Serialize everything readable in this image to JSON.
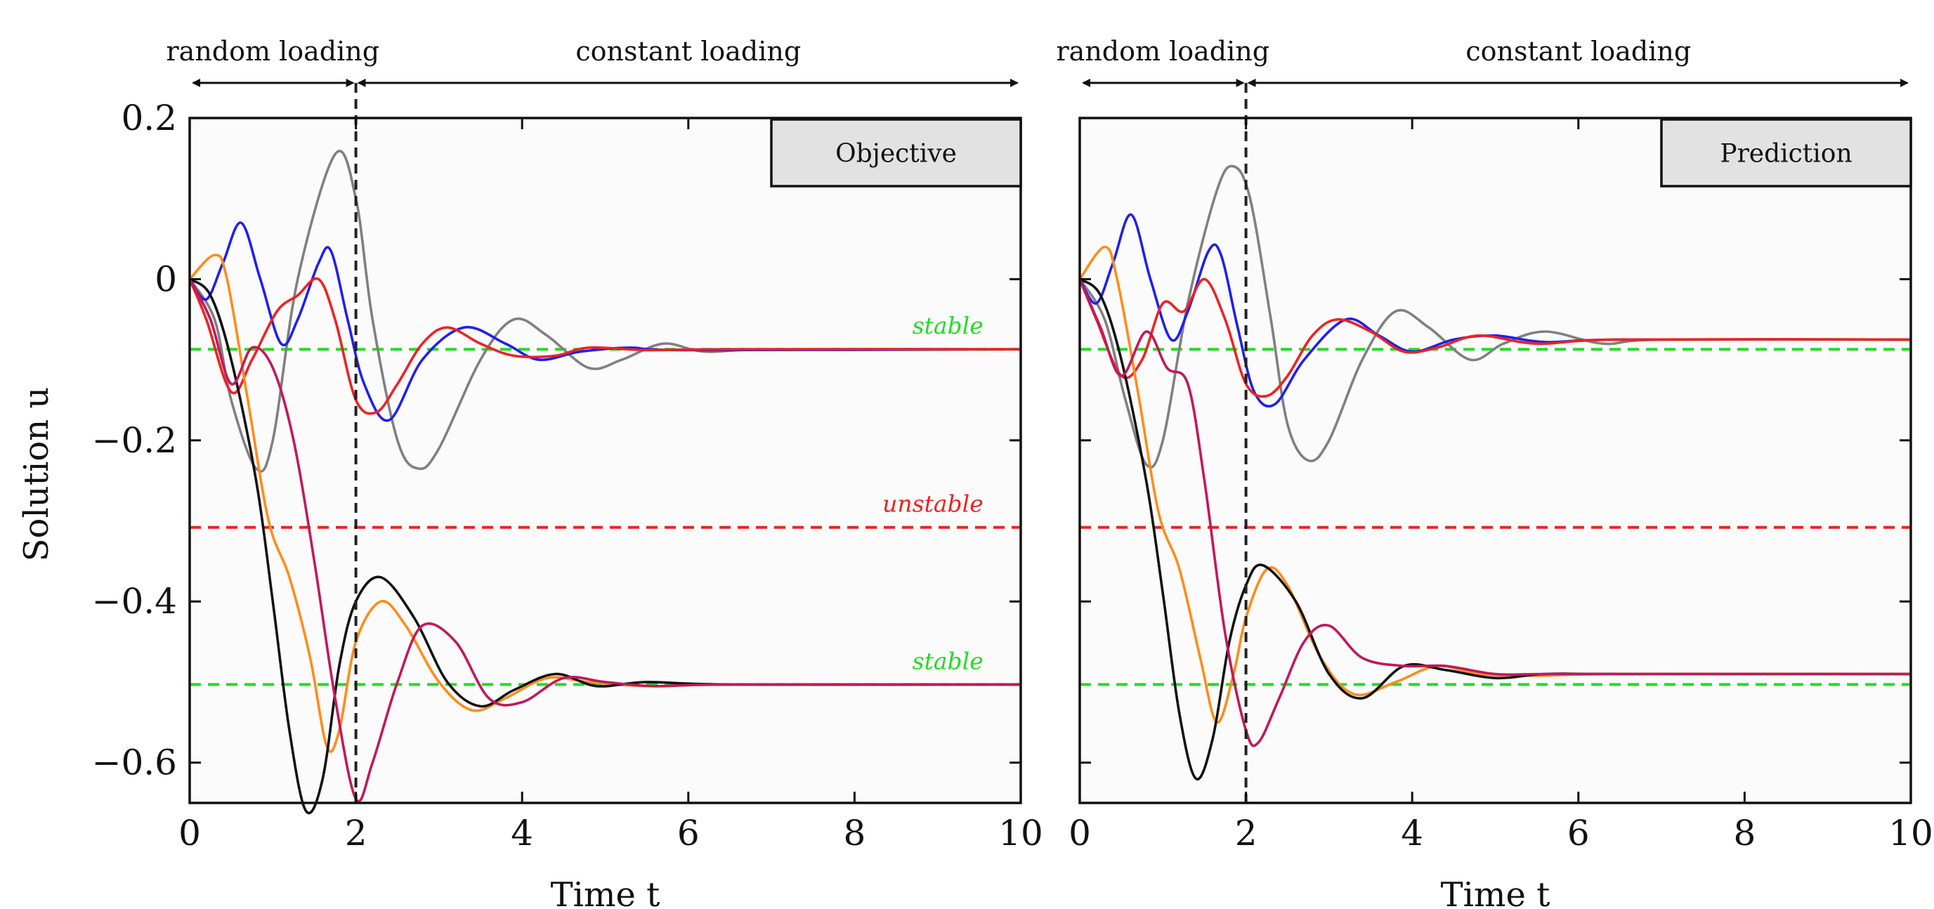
{
  "chart_data": [
    {
      "type": "line",
      "panel_label": "Objective",
      "xlabel": "Time t",
      "ylabel": "Solution u",
      "xlim": [
        0,
        10
      ],
      "ylim": [
        -0.65,
        0.2
      ],
      "x_ticks": [
        "0",
        "2",
        "4",
        "6",
        "8",
        "10"
      ],
      "y_ticks": [
        "0.2",
        "0",
        "−0.2",
        "−0.4",
        "−0.6"
      ],
      "y_tick_values": [
        0.2,
        0,
        -0.2,
        -0.4,
        -0.6
      ],
      "grid": false,
      "annotations": [
        {
          "text": "random loading",
          "from": 0,
          "to": 2
        },
        {
          "text": "constant loading",
          "from": 2,
          "to": 10
        }
      ],
      "vertical_line": {
        "x": 2,
        "style": "dashed",
        "color": "#222222"
      },
      "reference_lines": [
        {
          "label": "stable",
          "y": -0.087,
          "color": "#22dd22"
        },
        {
          "label": "unstable",
          "y": -0.308,
          "color": "#ee2222"
        },
        {
          "label": "stable",
          "y": -0.503,
          "color": "#22dd22"
        }
      ],
      "series": [
        {
          "color": "#808080",
          "points": [
            [
              0,
              0
            ],
            [
              0.3,
              -0.05
            ],
            [
              0.5,
              -0.15
            ],
            [
              0.8,
              -0.235
            ],
            [
              1.0,
              -0.2
            ],
            [
              1.3,
              0.0
            ],
            [
              1.75,
              0.155
            ],
            [
              2.0,
              0.1
            ],
            [
              2.2,
              -0.05
            ],
            [
              2.5,
              -0.2
            ],
            [
              2.75,
              -0.235
            ],
            [
              3.0,
              -0.21
            ],
            [
              3.5,
              -0.1
            ],
            [
              3.9,
              -0.05
            ],
            [
              4.3,
              -0.07
            ],
            [
              4.8,
              -0.11
            ],
            [
              5.2,
              -0.1
            ],
            [
              5.7,
              -0.08
            ],
            [
              6.2,
              -0.09
            ],
            [
              7,
              -0.087
            ],
            [
              10,
              -0.087
            ]
          ]
        },
        {
          "color": "#1f1fee",
          "points": [
            [
              0,
              0
            ],
            [
              0.2,
              -0.025
            ],
            [
              0.4,
              0.02
            ],
            [
              0.62,
              0.07
            ],
            [
              0.85,
              0.0
            ],
            [
              1.1,
              -0.08
            ],
            [
              1.3,
              -0.05
            ],
            [
              1.55,
              0.02
            ],
            [
              1.7,
              0.035
            ],
            [
              1.9,
              -0.05
            ],
            [
              2.1,
              -0.13
            ],
            [
              2.4,
              -0.175
            ],
            [
              2.8,
              -0.1
            ],
            [
              3.3,
              -0.06
            ],
            [
              3.8,
              -0.08
            ],
            [
              4.2,
              -0.1
            ],
            [
              4.7,
              -0.09
            ],
            [
              5.3,
              -0.085
            ],
            [
              6,
              -0.088
            ],
            [
              10,
              -0.087
            ]
          ]
        },
        {
          "color": "#ee2222",
          "points": [
            [
              0,
              0
            ],
            [
              0.2,
              -0.05
            ],
            [
              0.5,
              -0.14
            ],
            [
              0.75,
              -0.1
            ],
            [
              1.05,
              -0.04
            ],
            [
              1.3,
              -0.02
            ],
            [
              1.55,
              0.0
            ],
            [
              1.75,
              -0.05
            ],
            [
              2.0,
              -0.15
            ],
            [
              2.25,
              -0.165
            ],
            [
              2.5,
              -0.13
            ],
            [
              2.8,
              -0.08
            ],
            [
              3.1,
              -0.06
            ],
            [
              3.5,
              -0.08
            ],
            [
              3.9,
              -0.095
            ],
            [
              4.4,
              -0.095
            ],
            [
              4.8,
              -0.085
            ],
            [
              5.5,
              -0.088
            ],
            [
              6.5,
              -0.087
            ],
            [
              10,
              -0.087
            ]
          ]
        },
        {
          "color": "#ff8c1a",
          "points": [
            [
              0,
              0
            ],
            [
              0.3,
              0.03
            ],
            [
              0.45,
              0.0
            ],
            [
              0.7,
              -0.15
            ],
            [
              0.95,
              -0.3
            ],
            [
              1.2,
              -0.37
            ],
            [
              1.45,
              -0.47
            ],
            [
              1.65,
              -0.58
            ],
            [
              1.8,
              -0.56
            ],
            [
              2.0,
              -0.45
            ],
            [
              2.3,
              -0.4
            ],
            [
              2.6,
              -0.43
            ],
            [
              3.0,
              -0.5
            ],
            [
              3.4,
              -0.535
            ],
            [
              3.8,
              -0.52
            ],
            [
              4.3,
              -0.495
            ],
            [
              4.8,
              -0.5
            ],
            [
              5.5,
              -0.505
            ],
            [
              6.5,
              -0.503
            ],
            [
              10,
              -0.503
            ]
          ]
        },
        {
          "color": "#111111",
          "points": [
            [
              0,
              0
            ],
            [
              0.25,
              -0.02
            ],
            [
              0.5,
              -0.1
            ],
            [
              0.8,
              -0.25
            ],
            [
              1.0,
              -0.4
            ],
            [
              1.2,
              -0.56
            ],
            [
              1.4,
              -0.66
            ],
            [
              1.6,
              -0.62
            ],
            [
              1.8,
              -0.48
            ],
            [
              2.0,
              -0.4
            ],
            [
              2.3,
              -0.37
            ],
            [
              2.7,
              -0.42
            ],
            [
              3.1,
              -0.5
            ],
            [
              3.5,
              -0.53
            ],
            [
              3.9,
              -0.51
            ],
            [
              4.4,
              -0.49
            ],
            [
              4.9,
              -0.505
            ],
            [
              5.5,
              -0.5
            ],
            [
              6.5,
              -0.503
            ],
            [
              10,
              -0.503
            ]
          ]
        },
        {
          "color": "#c2185b",
          "points": [
            [
              0,
              0
            ],
            [
              0.25,
              -0.05
            ],
            [
              0.5,
              -0.13
            ],
            [
              0.75,
              -0.085
            ],
            [
              1.0,
              -0.11
            ],
            [
              1.25,
              -0.2
            ],
            [
              1.5,
              -0.35
            ],
            [
              1.75,
              -0.52
            ],
            [
              2.0,
              -0.645
            ],
            [
              2.2,
              -0.6
            ],
            [
              2.5,
              -0.5
            ],
            [
              2.8,
              -0.43
            ],
            [
              3.2,
              -0.45
            ],
            [
              3.6,
              -0.52
            ],
            [
              4.0,
              -0.525
            ],
            [
              4.5,
              -0.495
            ],
            [
              5.0,
              -0.5
            ],
            [
              5.6,
              -0.505
            ],
            [
              6.5,
              -0.503
            ],
            [
              10,
              -0.503
            ]
          ]
        }
      ]
    },
    {
      "type": "line",
      "panel_label": "Prediction",
      "xlabel": "Time t",
      "ylabel": "",
      "xlim": [
        0,
        10
      ],
      "ylim": [
        -0.65,
        0.2
      ],
      "x_ticks": [
        "0",
        "2",
        "4",
        "6",
        "8",
        "10"
      ],
      "grid": false,
      "annotations": [
        {
          "text": "random loading",
          "from": 0,
          "to": 2
        },
        {
          "text": "constant loading",
          "from": 2,
          "to": 10
        }
      ],
      "vertical_line": {
        "x": 2,
        "style": "dashed",
        "color": "#222222"
      },
      "reference_lines": [
        {
          "y": -0.087,
          "color": "#22dd22"
        },
        {
          "y": -0.308,
          "color": "#ee2222"
        },
        {
          "y": -0.503,
          "color": "#22dd22"
        }
      ],
      "series": [
        {
          "color": "#808080",
          "points": [
            [
              0,
              0
            ],
            [
              0.3,
              -0.05
            ],
            [
              0.55,
              -0.15
            ],
            [
              0.8,
              -0.23
            ],
            [
              1.0,
              -0.2
            ],
            [
              1.3,
              -0.03
            ],
            [
              1.65,
              0.11
            ],
            [
              1.85,
              0.14
            ],
            [
              2.05,
              0.1
            ],
            [
              2.3,
              -0.05
            ],
            [
              2.5,
              -0.18
            ],
            [
              2.75,
              -0.225
            ],
            [
              3.0,
              -0.2
            ],
            [
              3.4,
              -0.1
            ],
            [
              3.8,
              -0.04
            ],
            [
              4.2,
              -0.06
            ],
            [
              4.7,
              -0.1
            ],
            [
              5.1,
              -0.08
            ],
            [
              5.6,
              -0.065
            ],
            [
              6.3,
              -0.08
            ],
            [
              7,
              -0.075
            ],
            [
              10,
              -0.075
            ]
          ]
        },
        {
          "color": "#1f1fee",
          "points": [
            [
              0,
              0
            ],
            [
              0.2,
              -0.03
            ],
            [
              0.4,
              0.02
            ],
            [
              0.62,
              0.08
            ],
            [
              0.85,
              0.0
            ],
            [
              1.1,
              -0.075
            ],
            [
              1.3,
              -0.04
            ],
            [
              1.55,
              0.035
            ],
            [
              1.7,
              0.03
            ],
            [
              1.9,
              -0.06
            ],
            [
              2.1,
              -0.14
            ],
            [
              2.35,
              -0.155
            ],
            [
              2.7,
              -0.1
            ],
            [
              3.2,
              -0.05
            ],
            [
              3.6,
              -0.07
            ],
            [
              4.0,
              -0.09
            ],
            [
              4.5,
              -0.075
            ],
            [
              5.0,
              -0.07
            ],
            [
              5.6,
              -0.078
            ],
            [
              6.5,
              -0.075
            ],
            [
              10,
              -0.075
            ]
          ]
        },
        {
          "color": "#ee2222",
          "points": [
            [
              0,
              0
            ],
            [
              0.2,
              -0.05
            ],
            [
              0.5,
              -0.12
            ],
            [
              0.75,
              -0.1
            ],
            [
              1.0,
              -0.03
            ],
            [
              1.25,
              -0.04
            ],
            [
              1.5,
              0.0
            ],
            [
              1.75,
              -0.05
            ],
            [
              2.0,
              -0.13
            ],
            [
              2.25,
              -0.145
            ],
            [
              2.5,
              -0.12
            ],
            [
              2.8,
              -0.07
            ],
            [
              3.1,
              -0.05
            ],
            [
              3.5,
              -0.065
            ],
            [
              3.9,
              -0.09
            ],
            [
              4.3,
              -0.085
            ],
            [
              4.8,
              -0.07
            ],
            [
              5.5,
              -0.08
            ],
            [
              6.5,
              -0.075
            ],
            [
              10,
              -0.075
            ]
          ]
        },
        {
          "color": "#ff8c1a",
          "points": [
            [
              0,
              0
            ],
            [
              0.3,
              0.04
            ],
            [
              0.45,
              0.0
            ],
            [
              0.7,
              -0.14
            ],
            [
              0.95,
              -0.29
            ],
            [
              1.2,
              -0.36
            ],
            [
              1.45,
              -0.47
            ],
            [
              1.65,
              -0.55
            ],
            [
              1.85,
              -0.49
            ],
            [
              2.0,
              -0.42
            ],
            [
              2.25,
              -0.36
            ],
            [
              2.5,
              -0.38
            ],
            [
              2.9,
              -0.47
            ],
            [
              3.3,
              -0.515
            ],
            [
              3.8,
              -0.5
            ],
            [
              4.3,
              -0.48
            ],
            [
              4.8,
              -0.49
            ],
            [
              5.5,
              -0.492
            ],
            [
              6.5,
              -0.49
            ],
            [
              10,
              -0.49
            ]
          ]
        },
        {
          "color": "#111111",
          "points": [
            [
              0,
              0
            ],
            [
              0.25,
              -0.02
            ],
            [
              0.5,
              -0.1
            ],
            [
              0.8,
              -0.25
            ],
            [
              1.0,
              -0.39
            ],
            [
              1.2,
              -0.54
            ],
            [
              1.4,
              -0.62
            ],
            [
              1.6,
              -0.57
            ],
            [
              1.8,
              -0.45
            ],
            [
              2.0,
              -0.38
            ],
            [
              2.2,
              -0.355
            ],
            [
              2.6,
              -0.4
            ],
            [
              3.0,
              -0.49
            ],
            [
              3.4,
              -0.52
            ],
            [
              3.9,
              -0.48
            ],
            [
              4.4,
              -0.485
            ],
            [
              5.0,
              -0.495
            ],
            [
              5.6,
              -0.49
            ],
            [
              6.5,
              -0.49
            ],
            [
              10,
              -0.49
            ]
          ]
        },
        {
          "color": "#c2185b",
          "points": [
            [
              0,
              0
            ],
            [
              0.25,
              -0.06
            ],
            [
              0.5,
              -0.12
            ],
            [
              0.8,
              -0.065
            ],
            [
              1.05,
              -0.11
            ],
            [
              1.3,
              -0.13
            ],
            [
              1.5,
              -0.25
            ],
            [
              1.75,
              -0.44
            ],
            [
              2.0,
              -0.56
            ],
            [
              2.15,
              -0.575
            ],
            [
              2.4,
              -0.52
            ],
            [
              2.7,
              -0.45
            ],
            [
              3.0,
              -0.43
            ],
            [
              3.4,
              -0.47
            ],
            [
              3.9,
              -0.48
            ],
            [
              4.4,
              -0.48
            ],
            [
              5.0,
              -0.49
            ],
            [
              5.6,
              -0.49
            ],
            [
              6.5,
              -0.49
            ],
            [
              10,
              -0.49
            ]
          ]
        }
      ]
    }
  ]
}
